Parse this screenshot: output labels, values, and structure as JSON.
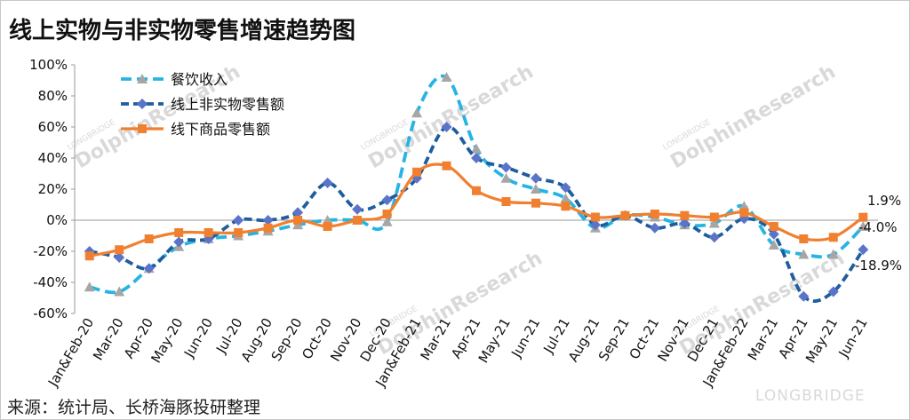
{
  "title": "线上实物与非实物零售增速趋势图",
  "source": "来源：统计局、长桥海豚投研整理",
  "watermark": {
    "brand": "LONGBRIDGE",
    "name": "DolphinResearch",
    "logo": "LONGBRIDGE"
  },
  "chart_data": {
    "type": "line",
    "categories": [
      "Jan&Feb-20",
      "Mar-20",
      "Apr-20",
      "May-20",
      "Jun-20",
      "Jul-20",
      "Aug-20",
      "Sep-20",
      "Oct-20",
      "Nov-20",
      "Dec-20",
      "Jan&Feb-21",
      "Mar-21",
      "Apr-21",
      "May-21",
      "Jun-21",
      "Jul-21",
      "Aug-21",
      "Sep-21",
      "Oct-21",
      "Nov-21",
      "Dec-21",
      "Jan&Feb-22",
      "Mar-21",
      "Apr-21",
      "May-21",
      "Jun-21"
    ],
    "ylim": [
      -60,
      100
    ],
    "yticks": [
      -60,
      -40,
      -20,
      0,
      20,
      40,
      60,
      80,
      100
    ],
    "ytick_labels": [
      "-60%",
      "-40%",
      "-20%",
      "0%",
      "20%",
      "40%",
      "60%",
      "80%",
      "100%"
    ],
    "legend_position": "top-left",
    "series": [
      {
        "name": "餐饮收入",
        "color": "#27b4e3",
        "style": "dashed",
        "marker": "triangle",
        "marker_color": "#a6a6a6",
        "values": [
          -43,
          -46,
          -31,
          -17,
          -12,
          -10,
          -7,
          -3,
          0,
          0,
          -1,
          69,
          92,
          46,
          27,
          20,
          14,
          -5,
          3,
          2,
          -3,
          -2,
          9,
          -16,
          -22,
          -22,
          -4
        ]
      },
      {
        "name": "线上非实物零售额",
        "color": "#1f5d9e",
        "style": "dashed",
        "marker": "diamond",
        "marker_color": "#5b74c8",
        "values": [
          -20,
          -24,
          -31,
          -14,
          -12,
          0,
          0,
          5,
          24,
          7,
          13,
          27,
          60,
          40,
          34,
          27,
          21,
          -3,
          3,
          -5,
          -2,
          -11,
          1,
          -9,
          -49,
          -46,
          -18.9
        ]
      },
      {
        "name": "线下商品零售额",
        "color": "#f0802f",
        "style": "solid",
        "marker": "square",
        "marker_color": "#f0802f",
        "values": [
          -23,
          -19,
          -12,
          -8,
          -8,
          -8,
          -5,
          0,
          -4,
          0,
          4,
          31,
          35,
          19,
          12,
          11,
          9,
          2,
          3,
          4,
          3,
          2,
          5,
          -4,
          -12,
          -11,
          1.9
        ]
      }
    ],
    "data_labels": [
      {
        "text": "1.9%",
        "series": 2,
        "index": 26
      },
      {
        "text": "-4.0%",
        "series": 0,
        "index": 26
      },
      {
        "text": "-18.9%",
        "series": 1,
        "index": 26
      }
    ]
  }
}
